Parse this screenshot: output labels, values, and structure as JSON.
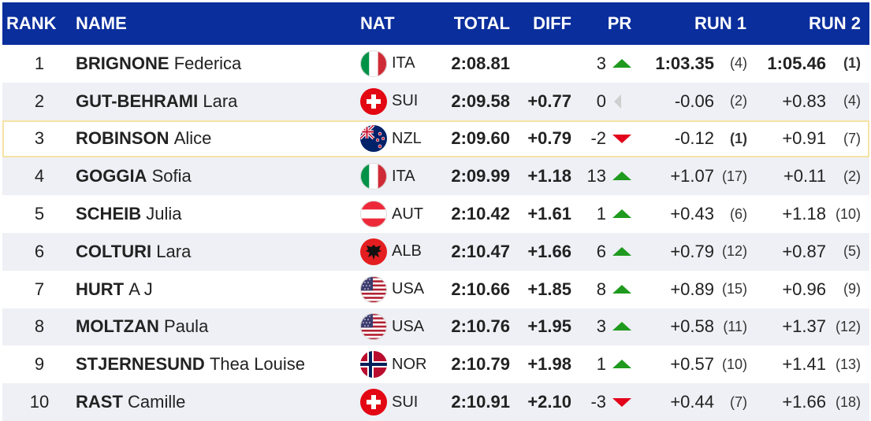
{
  "table": {
    "header": [
      "RANK",
      "NAME",
      "NAT",
      "TOTAL",
      "DIFF",
      "PR",
      "RUN 1",
      "RUN 2"
    ],
    "rows": [
      {
        "rank": 1,
        "surname": "BRIGNONE",
        "first_name": "Federica",
        "nat": "ITA",
        "total": "2:08.81",
        "pr": 3,
        "run1": "1:03.35",
        "run1_rank": "(4)",
        "run2": "1:05.46",
        "run2_rank": "(1)"
      },
      {
        "rank": 2,
        "surname": "GUT-BEHRAMI",
        "first_name": "Lara",
        "nat": "SUI",
        "total": "2:09.58",
        "diff": "+0.77",
        "pr": 0,
        "run1": "-0.06",
        "run1_rank": "(2)",
        "run2": "+0.83",
        "run2_rank": "(4)"
      },
      {
        "rank": 3,
        "surname": "ROBINSON",
        "first_name": "Alice",
        "nat": "NZL",
        "total": "2:09.60",
        "diff": "+0.79",
        "pr": -2,
        "run1": "-0.12",
        "run1_rank": "(1)",
        "run2": "+0.91",
        "run2_rank": "(7)"
      },
      {
        "rank": 4,
        "surname": "GOGGIA",
        "first_name": "Sofia",
        "nat": "ITA",
        "total": "2:09.99",
        "diff": "+1.18",
        "pr": 13,
        "run1": "+1.07",
        "run1_rank": "(17)",
        "run2": "+0.11",
        "run2_rank": "(2)"
      },
      {
        "rank": 5,
        "surname": "SCHEIB",
        "first_name": "Julia",
        "nat": "AUT",
        "total": "2:10.42",
        "diff": "+1.61",
        "pr": 1,
        "run1": "+0.43",
        "run1_rank": "(6)",
        "run2": "+1.18",
        "run2_rank": "(10)"
      },
      {
        "rank": 6,
        "surname": "COLTURI",
        "first_name": "Lara",
        "nat": "ALB",
        "total": "2:10.47",
        "diff": "+1.66",
        "pr": 6,
        "run1": "+0.79",
        "run1_rank": "(12)",
        "run2": "+0.87",
        "run2_rank": "(5)"
      },
      {
        "rank": 7,
        "surname": "HURT",
        "first_name": "A J",
        "nat": "USA",
        "total": "2:10.66",
        "diff": "+1.85",
        "pr": 8,
        "run1": "+0.89",
        "run1_rank": "(15)",
        "run2": "+0.96",
        "run2_rank": "(9)"
      },
      {
        "rank": 8,
        "surname": "MOLTZAN",
        "first_name": "Paula",
        "nat": "USA",
        "total": "2:10.76",
        "diff": "+1.95",
        "pr": 3,
        "run1": "+0.58",
        "run1_rank": "(11)",
        "run2": "+1.37",
        "run2_rank": "(12)"
      },
      {
        "rank": 9,
        "surname": "STJERNESUND",
        "first_name": "Thea Louise",
        "nat": "NOR",
        "total": "2:10.79",
        "diff": "+1.98",
        "pr": 1,
        "run1": "+0.57",
        "run1_rank": "(10)",
        "run2": "+1.41",
        "run2_rank": "(13)"
      },
      {
        "rank": 10,
        "surname": "RAST",
        "first_name": "Camille",
        "nat": "SUI",
        "total": "2:10.91",
        "diff": "+2.10",
        "pr": -3,
        "run1": "+0.44",
        "run1_rank": "(7)",
        "run2": "+1.66",
        "run2_rank": "(18)"
      }
    ]
  }
}
